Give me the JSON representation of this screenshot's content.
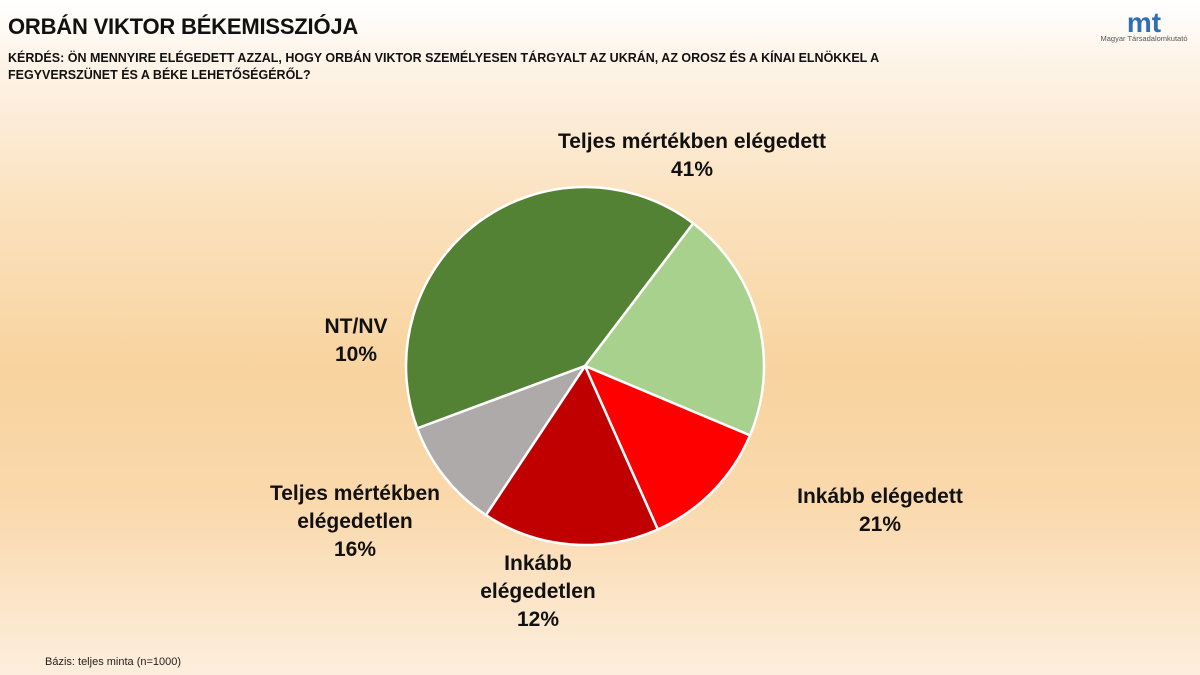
{
  "header": {
    "title": "ORBÁN VIKTOR BÉKEMISSZIÓJA",
    "question": "KÉRDÉS: ÖN MENNYIRE ELÉGEDETT AZZAL, HOGY ORBÁN VIKTOR SZEMÉLYESEN TÁRGYALT AZ UKRÁN, AZ OROSZ ÉS A KÍNAI ELNÖKKEL A FEGYVERSZÜNET ÉS A BÉKE LEHETŐSÉGÉRŐL?"
  },
  "logo": {
    "mark": "mt",
    "name": "Magyar Társadalomkutató",
    "color": "#2f6fb5"
  },
  "chart_data": {
    "type": "pie",
    "start": "top, clockwise",
    "slices": [
      {
        "label": "Teljes mértékben elégedett",
        "value": 41,
        "value_label": "41%",
        "color": "#548235"
      },
      {
        "label": "Inkább elégedett",
        "value": 21,
        "value_label": "21%",
        "color": "#a9d18e"
      },
      {
        "label": "Inkább elégedetlen",
        "value": 12,
        "value_label": "12%",
        "color": "#ff0000"
      },
      {
        "label": "Teljes mértékben elégedetlen",
        "value": 16,
        "value_label": "16%",
        "color": "#c00000"
      },
      {
        "label": "NT/NV",
        "value": 10,
        "value_label": "10%",
        "color": "#aeaaaa"
      }
    ]
  },
  "footnote": "Bázis: teljes  minta  (n=1000)"
}
